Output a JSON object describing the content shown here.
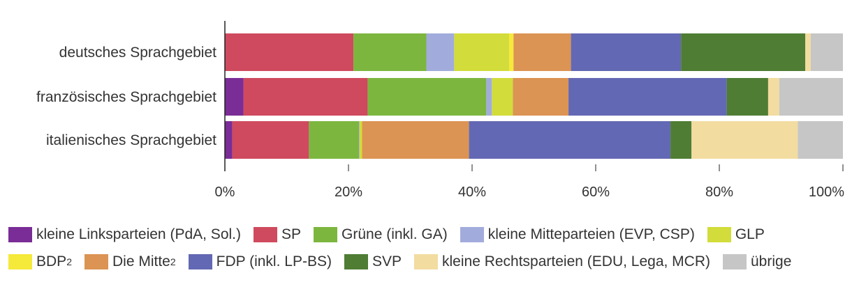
{
  "chart_data": {
    "type": "bar",
    "orientation": "horizontal",
    "stacked": true,
    "title": "",
    "xlabel": "",
    "ylabel": "",
    "xlim": [
      0,
      100
    ],
    "x_ticks": [
      "0%",
      "20%",
      "40%",
      "60%",
      "80%",
      "100%"
    ],
    "grid": false,
    "legend_position": "bottom",
    "categories": [
      "deutsches Sprachgebiet",
      "französisches Sprachgebiet",
      "italienisches Sprachgebiet"
    ],
    "series": [
      {
        "name": "kleine Linksparteien (PdA, Sol.)",
        "sup": "",
        "color": "#7a2d96",
        "values": [
          0,
          3.0,
          1.2
        ]
      },
      {
        "name": "SP",
        "sup": "",
        "color": "#cf4a5e",
        "values": [
          20.8,
          20.1,
          12.4
        ]
      },
      {
        "name": "Grüne (inkl. GA)",
        "sup": "",
        "color": "#7db63f",
        "values": [
          11.8,
          19.2,
          8.1
        ]
      },
      {
        "name": "kleine Mitteparteien (EVP, CSP)",
        "sup": "",
        "color": "#a2acdc",
        "values": [
          4.5,
          0.9,
          0.1
        ]
      },
      {
        "name": "GLP",
        "sup": "",
        "color": "#d2dc3a",
        "values": [
          8.9,
          3.4,
          0.4
        ]
      },
      {
        "name": "BDP",
        "sup": "2",
        "color": "#f5e93a",
        "values": [
          0.7,
          0,
          0
        ]
      },
      {
        "name": "Die Mitte",
        "sup": "2",
        "color": "#db9453",
        "values": [
          9.3,
          9.0,
          17.3
        ]
      },
      {
        "name": "FDP (inkl. LP-BS)",
        "sup": "",
        "color": "#6368b4",
        "values": [
          17.8,
          25.6,
          32.6
        ]
      },
      {
        "name": "SVP",
        "sup": "",
        "color": "#4f7d34",
        "values": [
          20.1,
          6.7,
          3.4
        ]
      },
      {
        "name": "kleine Rechtsparteien (EDU, Lega, MCR)",
        "sup": "",
        "color": "#f2dca0",
        "values": [
          0.9,
          1.8,
          17.2
        ]
      },
      {
        "name": "übrige",
        "sup": "",
        "color": "#c6c6c6",
        "values": [
          5.2,
          10.3,
          7.3
        ]
      }
    ]
  }
}
